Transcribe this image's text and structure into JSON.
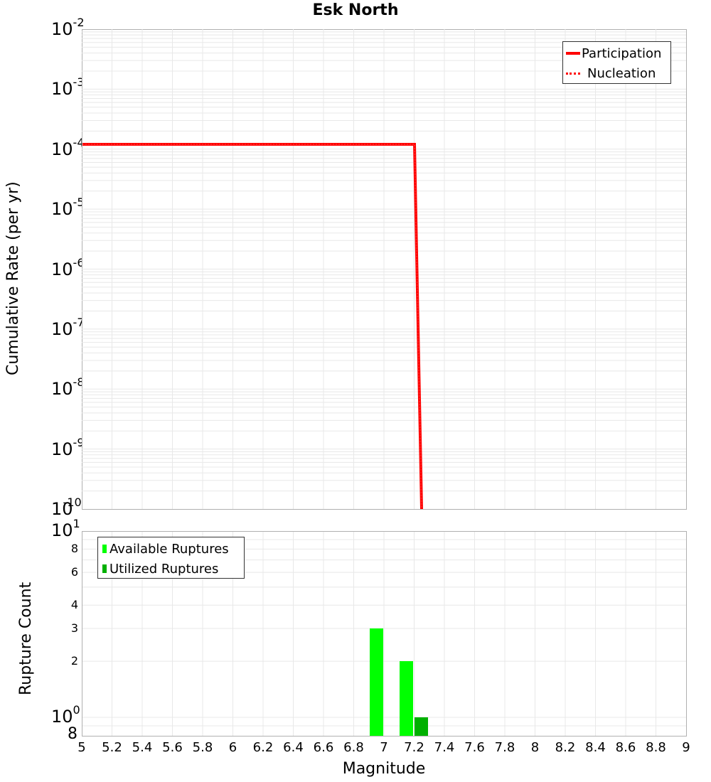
{
  "chart_data": [
    {
      "type": "line",
      "title": "Esk North",
      "xlabel": "Magnitude",
      "ylabel": "Cumulative Rate (per yr)",
      "yscale": "log",
      "xlim": [
        5,
        9
      ],
      "ylim": [
        1e-10,
        0.01
      ],
      "grid": true,
      "legend_position": "upper right",
      "y_tick_labels": [
        "10^-2",
        "10^-3",
        "10^-4",
        "10^-5",
        "10^-6",
        "10^-7",
        "10^-8",
        "10^-9",
        "10^-10"
      ],
      "series": [
        {
          "name": "Participation",
          "style": "solid",
          "color": "#ff0000",
          "x": [
            5.0,
            7.2,
            7.25
          ],
          "y": [
            0.00012,
            0.00012,
            1e-10
          ]
        },
        {
          "name": "Nucleation",
          "style": "dotted",
          "color": "#ff0000",
          "x": [
            5.0,
            7.2,
            7.25
          ],
          "y": [
            0.00012,
            0.00012,
            1e-10
          ]
        }
      ]
    },
    {
      "type": "bar",
      "title": "",
      "xlabel": "Magnitude",
      "ylabel": "Rupture Count",
      "yscale": "log",
      "xlim": [
        5,
        9
      ],
      "ylim": [
        0.8,
        10
      ],
      "grid": true,
      "legend_position": "upper left",
      "x_tick_labels": [
        "5",
        "5.2",
        "5.4",
        "5.6",
        "5.8",
        "6",
        "6.2",
        "6.4",
        "6.6",
        "6.8",
        "7",
        "7.2",
        "7.4",
        "7.6",
        "7.8",
        "8",
        "8.2",
        "8.4",
        "8.6",
        "8.8",
        "9"
      ],
      "y_tick_labels": [
        "10^1",
        "8",
        "6",
        "4",
        "3",
        "2",
        "10^0",
        "8"
      ],
      "series": [
        {
          "name": "Available Ruptures",
          "color": "#00ff00",
          "x": [
            6.95,
            7.15
          ],
          "values": [
            3,
            2
          ]
        },
        {
          "name": "Utilized Ruptures",
          "color": "#00b000",
          "x": [
            7.25
          ],
          "values": [
            1
          ]
        }
      ]
    }
  ],
  "chart": {
    "title": "Esk North",
    "top": {
      "ylabel": "Cumulative Rate (per yr)",
      "yticks": [
        {
          "base": "10",
          "exp": "-2"
        },
        {
          "base": "10",
          "exp": "-3"
        },
        {
          "base": "10",
          "exp": "-4"
        },
        {
          "base": "10",
          "exp": "-5"
        },
        {
          "base": "10",
          "exp": "-6"
        },
        {
          "base": "10",
          "exp": "-7"
        },
        {
          "base": "10",
          "exp": "-8"
        },
        {
          "base": "10",
          "exp": "-9"
        },
        {
          "base": "10",
          "exp": "-10"
        }
      ],
      "legend": [
        {
          "label": "Participation",
          "style": "solid",
          "color": "#ff0000"
        },
        {
          "label": "Nucleation",
          "style": "dotted",
          "color": "#ff0000"
        }
      ]
    },
    "bottom": {
      "ylabel": "Rupture Count",
      "ytick_major_top": {
        "base": "10",
        "exp": "1"
      },
      "ytick_major_mid": {
        "base": "10",
        "exp": "0"
      },
      "ytick_minor": [
        "8",
        "6",
        "4",
        "3",
        "2"
      ],
      "ytick_bottom": "8",
      "legend": [
        {
          "label": "Available Ruptures",
          "color": "#00ff00"
        },
        {
          "label": "Utilized Ruptures",
          "color": "#00b000"
        }
      ]
    },
    "xlabel": "Magnitude",
    "xticks": [
      "5",
      "5.2",
      "5.4",
      "5.6",
      "5.8",
      "6",
      "6.2",
      "6.4",
      "6.6",
      "6.8",
      "7",
      "7.2",
      "7.4",
      "7.6",
      "7.8",
      "8",
      "8.2",
      "8.4",
      "8.6",
      "8.8",
      "9"
    ]
  }
}
